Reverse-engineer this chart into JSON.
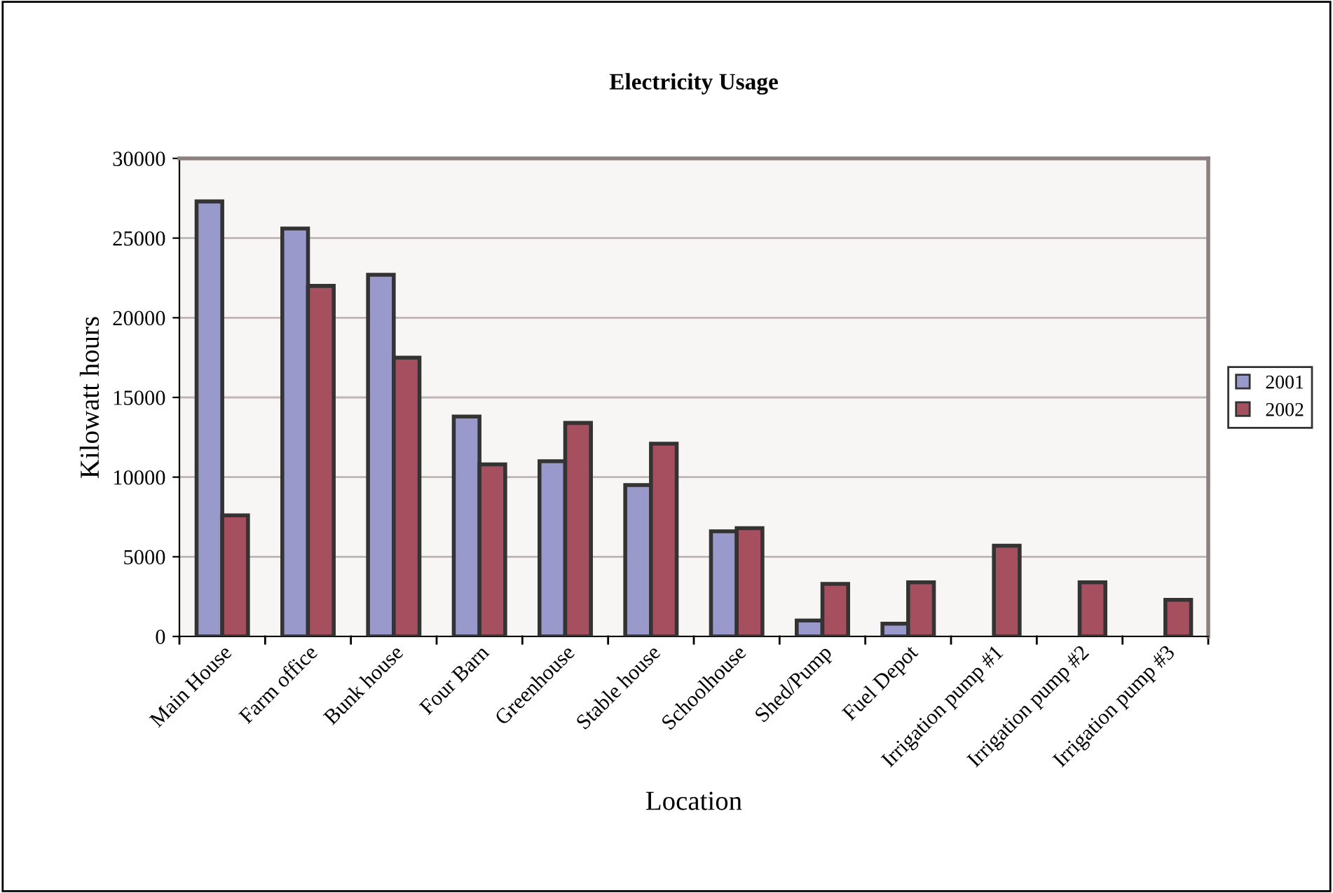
{
  "chart_data": {
    "type": "bar",
    "title": "Electricity Usage",
    "xlabel": "Location",
    "ylabel": "Kilowatt hours",
    "categories": [
      "Main House",
      "Farm office",
      "Bunk house",
      "Four Barn",
      "Greenhouse",
      "Stable house",
      "Schoolhouse",
      "Shed/Pump",
      "Fuel Depot",
      "Irrigation pump #1",
      "Irrigation pump #2",
      "Irrigation pump #3"
    ],
    "series": [
      {
        "name": "2001",
        "color": "#9999cc",
        "values": [
          27300,
          25600,
          22700,
          13800,
          11000,
          9500,
          6600,
          1000,
          800,
          null,
          null,
          null
        ]
      },
      {
        "name": "2002",
        "color": "#a6505f",
        "values": [
          7600,
          22000,
          17500,
          10800,
          13400,
          12100,
          6800,
          3300,
          3400,
          5700,
          3400,
          2300
        ]
      }
    ],
    "ylim": [
      0,
      30000
    ],
    "yticks": [
      0,
      5000,
      10000,
      15000,
      20000,
      25000,
      30000
    ],
    "grid": "y",
    "legend": "right"
  }
}
